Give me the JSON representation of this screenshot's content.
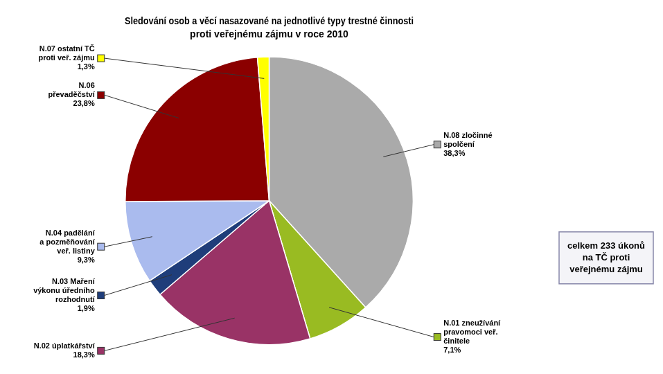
{
  "chart_data": {
    "type": "pie",
    "title": "Sledování osob a věcí nasazované na jednotlivé typy trestné činnosti",
    "subtitle": "proti veřejnému zájmu v roce 2010",
    "categories": [
      "N.08 zločinné\nspolčení",
      "N.01 zneužívání\npravomoci veř.\nčinitele",
      "N.02 úplatkářství",
      "N.03 Maření\nvýkonu úředního\nrozhodnutí",
      "N.04 padělání\na pozměňování\nveř. listiny",
      "N.06\npřevaděčství",
      "N.07 ostatní TČ\nproti veř. zájmu"
    ],
    "values": [
      38.3,
      7.1,
      18.3,
      1.9,
      9.3,
      23.8,
      1.3
    ],
    "value_labels": [
      "38,3%",
      "7,1%",
      "18,3%",
      "1,9%",
      "9,3%",
      "23,8%",
      "1,3%"
    ],
    "colors": [
      "#aaaaaa",
      "#99bb22",
      "#993366",
      "#1f3d7a",
      "#aabbee",
      "#8b0000",
      "#ffff00"
    ],
    "data_labels": true,
    "annotations": [
      "celkem 233 úkonů\nna TČ proti\nveřejnému zájmu"
    ]
  }
}
